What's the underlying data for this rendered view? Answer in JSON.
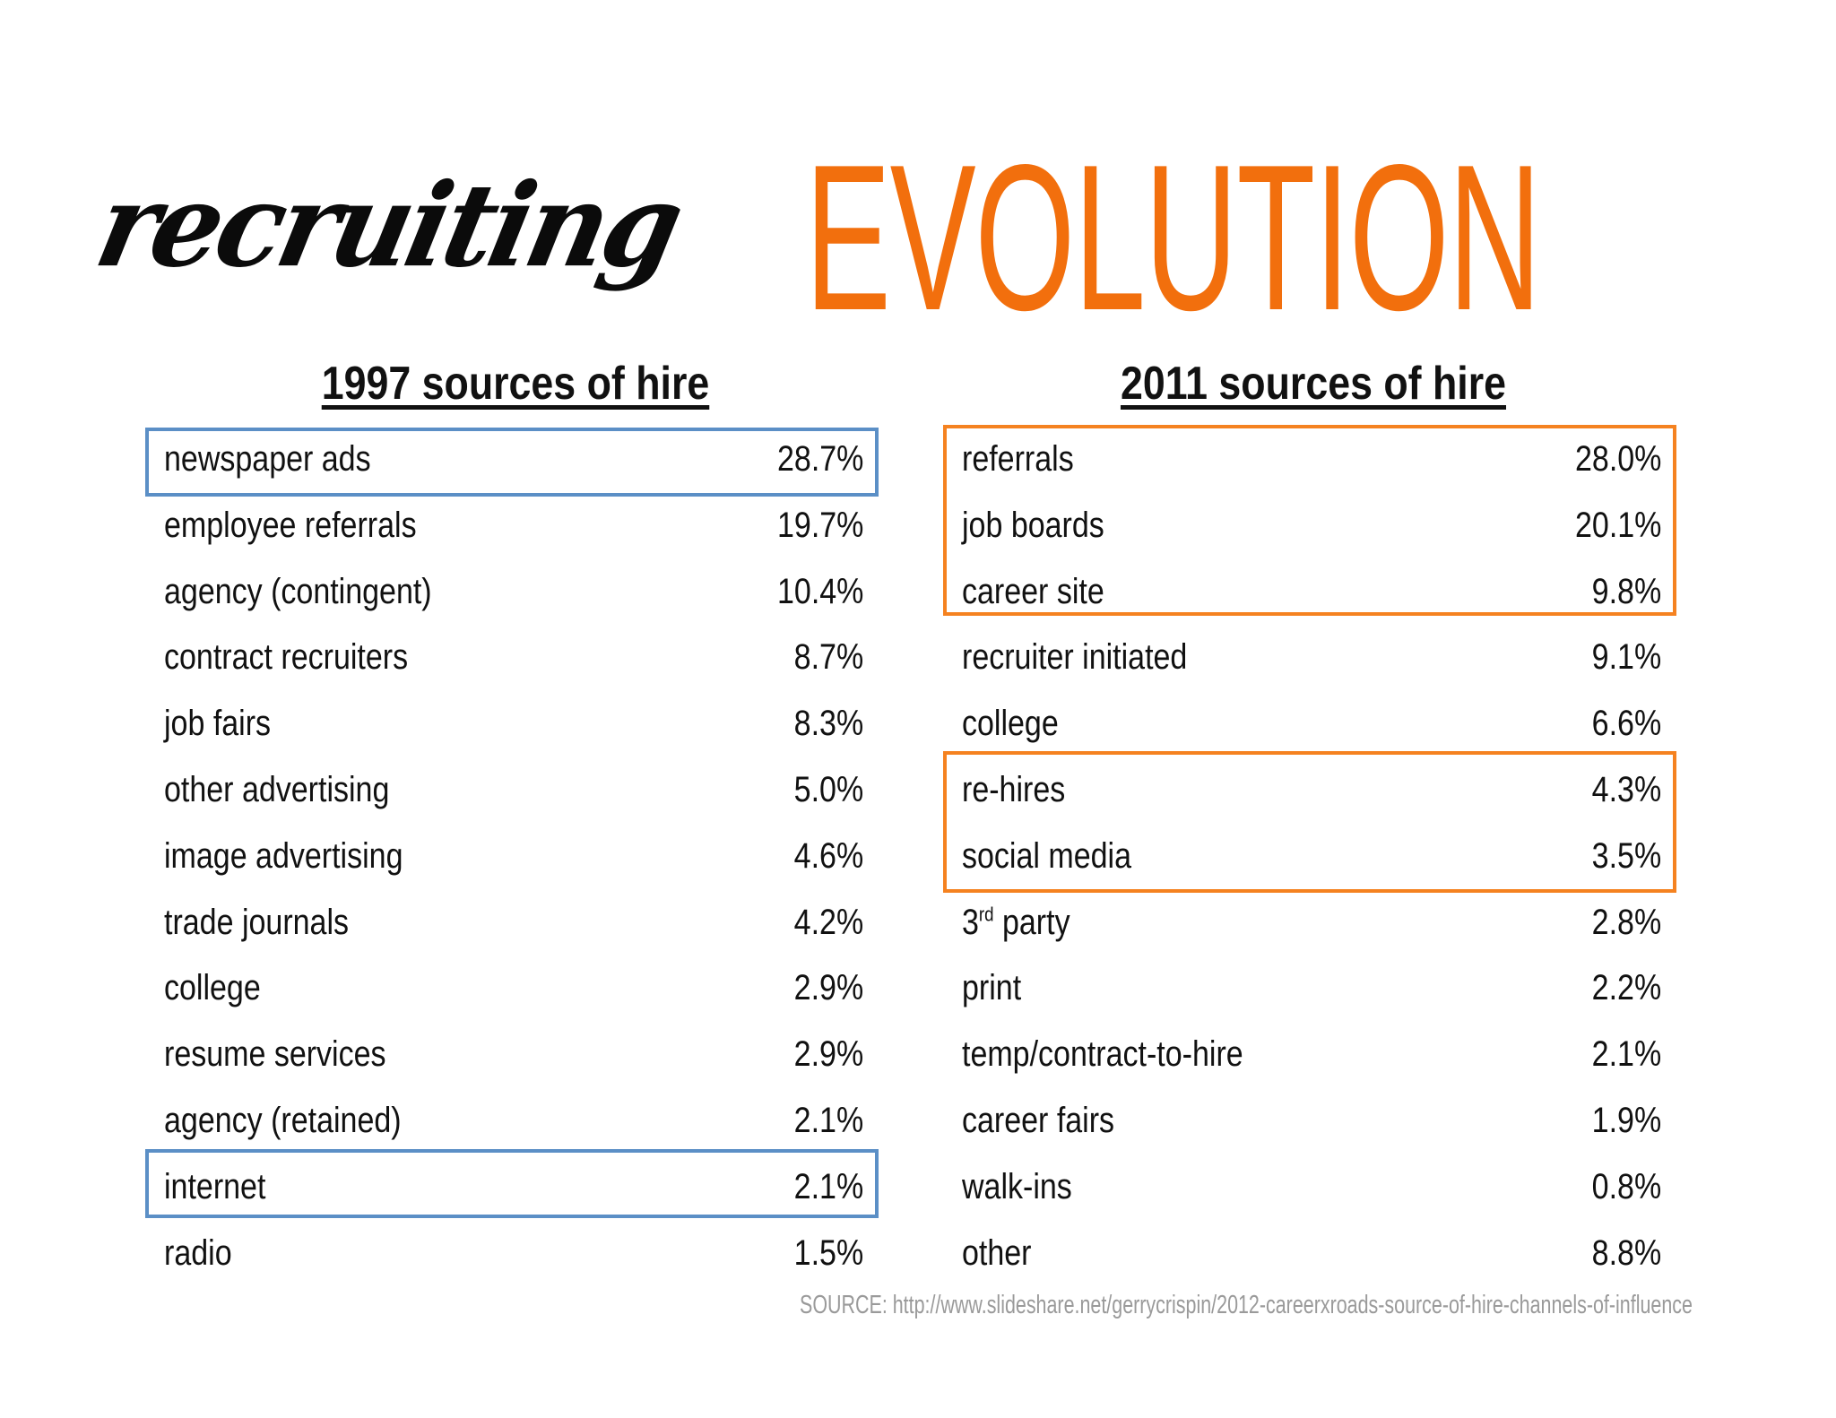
{
  "title": {
    "script": "recruiting",
    "main": "EVOLUTION"
  },
  "col1997": {
    "heading": "1997 sources of hire",
    "rows": [
      {
        "label": "newspaper ads",
        "value": "28.7%"
      },
      {
        "label": "employee referrals",
        "value": "19.7%"
      },
      {
        "label": "agency (contingent)",
        "value": "10.4%"
      },
      {
        "label": "contract recruiters",
        "value": "8.7%"
      },
      {
        "label": "job fairs",
        "value": "8.3%"
      },
      {
        "label": "other advertising",
        "value": "5.0%"
      },
      {
        "label": "image advertising",
        "value": "4.6%"
      },
      {
        "label": "trade journals",
        "value": "4.2%"
      },
      {
        "label": "college",
        "value": "2.9%"
      },
      {
        "label": "resume services",
        "value": "2.9%"
      },
      {
        "label": "agency (retained)",
        "value": "2.1%"
      },
      {
        "label": "internet",
        "value": "2.1%"
      },
      {
        "label": "radio",
        "value": "1.5%"
      }
    ]
  },
  "col2011": {
    "heading": "2011 sources of hire",
    "rows": [
      {
        "label": "referrals",
        "value": "28.0%"
      },
      {
        "label": "job boards",
        "value": "20.1%"
      },
      {
        "label": "career site",
        "value": "9.8%"
      },
      {
        "label": "recruiter initiated",
        "value": "9.1%"
      },
      {
        "label": "college",
        "value": "6.6%"
      },
      {
        "label": "re-hires",
        "value": "4.3%"
      },
      {
        "label": "social media",
        "value": "3.5%"
      },
      {
        "label": "3",
        "sup": "rd",
        "rest": " party",
        "value": "2.8%"
      },
      {
        "label": "print",
        "value": "2.2%"
      },
      {
        "label": "temp/contract-to-hire",
        "value": "2.1%"
      },
      {
        "label": "career fairs",
        "value": "1.9%"
      },
      {
        "label": "walk-ins",
        "value": "0.8%"
      },
      {
        "label": "other",
        "value": "8.8%"
      }
    ]
  },
  "source": "SOURCE: http://www.slideshare.net/gerrycrispin/2012-careerxroads-source-of-hire-channels-of-influence",
  "colors": {
    "accent_orange": "#f26f0d",
    "box_blue": "#5b8fc6",
    "box_orange": "#f58220"
  }
}
